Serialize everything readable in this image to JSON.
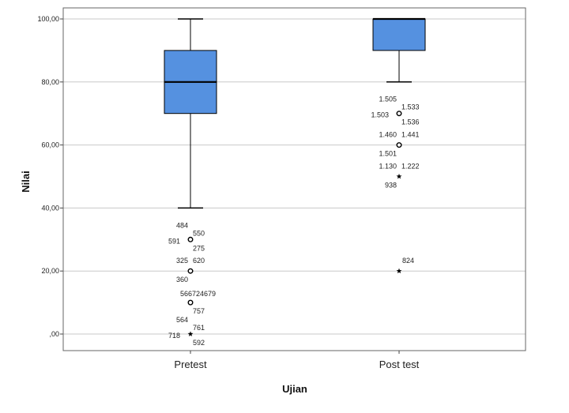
{
  "chart_data": {
    "type": "boxplot",
    "xlabel": "Ujian",
    "ylabel": "Nilai",
    "ylim": [
      0,
      100
    ],
    "y_ticks": [
      {
        "value": 0,
        "label": ",00"
      },
      {
        "value": 20,
        "label": "20,00"
      },
      {
        "value": 40,
        "label": "40,00"
      },
      {
        "value": 60,
        "label": "60,00"
      },
      {
        "value": 80,
        "label": "80,00"
      },
      {
        "value": 100,
        "label": "100,00"
      }
    ],
    "grid": true,
    "colors": {
      "box": "#5591e0",
      "line": "#000000",
      "grid": "#c8c8c8"
    },
    "categories": [
      "Pretest",
      "Post test"
    ],
    "boxes": [
      {
        "category": "Pretest",
        "whisker_low": 40,
        "q1": 70,
        "median": 80,
        "q3": 90,
        "whisker_high": 100,
        "outliers": [
          {
            "value": 30,
            "marker": "circle",
            "labels": [
              "484",
              "550",
              "591",
              "275"
            ]
          },
          {
            "value": 20,
            "marker": "circle",
            "labels": [
              "325",
              "620",
              "360"
            ]
          },
          {
            "value": 10,
            "marker": "circle",
            "labels": [
              "566724679",
              "757"
            ]
          },
          {
            "value": 0,
            "marker": "star",
            "labels": [
              "564",
              "761",
              "718",
              "592"
            ]
          }
        ]
      },
      {
        "category": "Post test",
        "whisker_low": 80,
        "q1": 90,
        "median": 100,
        "q3": 100,
        "whisker_high": 100,
        "outliers": [
          {
            "value": 70,
            "marker": "circle",
            "labels": [
              "1.505",
              "1.533",
              "1.503",
              "1.536"
            ]
          },
          {
            "value": 60,
            "marker": "circle",
            "labels": [
              "1.460",
              "1.441",
              "1.501"
            ]
          },
          {
            "value": 50,
            "marker": "star",
            "labels": [
              "1.130",
              "1.222",
              "938"
            ]
          },
          {
            "value": 20,
            "marker": "star",
            "labels": [
              "824"
            ]
          }
        ]
      }
    ]
  }
}
